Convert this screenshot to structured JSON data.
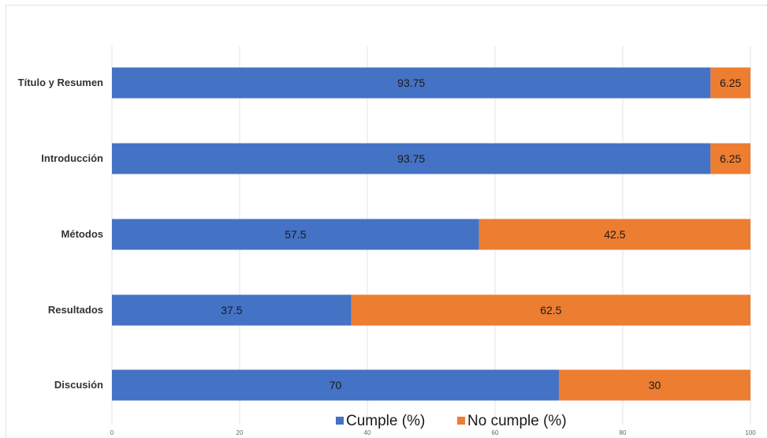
{
  "chart_data": {
    "type": "bar",
    "orientation": "horizontal",
    "stacked": true,
    "categories": [
      "Título y Resumen",
      "Introducción",
      "Métodos",
      "Resultados",
      "Discusión"
    ],
    "series": [
      {
        "name": "Cumple (%)",
        "values": [
          93.75,
          93.75,
          57.5,
          37.5,
          70
        ],
        "color": "#4472c4"
      },
      {
        "name": "No cumple (%)",
        "values": [
          6.25,
          6.25,
          42.5,
          62.5,
          30
        ],
        "color": "#ed7d31"
      }
    ],
    "x_ticks": [
      0,
      20,
      40,
      60,
      80,
      100
    ],
    "xlim": [
      0,
      100
    ],
    "title": "",
    "xlabel": "",
    "ylabel": "",
    "grid": "vertical",
    "legend_position": "bottom"
  }
}
